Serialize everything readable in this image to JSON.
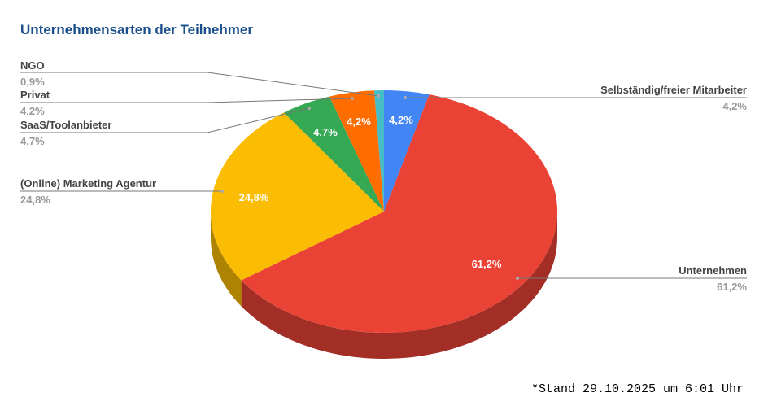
{
  "chart_data": {
    "type": "pie",
    "title": "Unternehmensarten der Teilnehmer",
    "three_d": true,
    "slices": [
      {
        "label": "Selbständig/freier Mitarbeiter",
        "value": 4.2,
        "display": "4,2%",
        "color": "#4285F4"
      },
      {
        "label": "Unternehmen",
        "value": 61.2,
        "display": "61,2%",
        "color": "#EA4335"
      },
      {
        "label": "(Online) Marketing Agentur",
        "value": 24.8,
        "display": "24,8%",
        "color": "#FBBC04"
      },
      {
        "label": "SaaS/Toolanbieter",
        "value": 4.7,
        "display": "4,7%",
        "color": "#34A853"
      },
      {
        "label": "Privat",
        "value": 4.2,
        "display": "4,2%",
        "color": "#FF6D01"
      },
      {
        "label": "NGO",
        "value": 0.9,
        "display": "0,9%",
        "color": "#46BDC6"
      }
    ]
  },
  "footnote": "*Stand 29.10.2025 um 6:01 Uhr"
}
